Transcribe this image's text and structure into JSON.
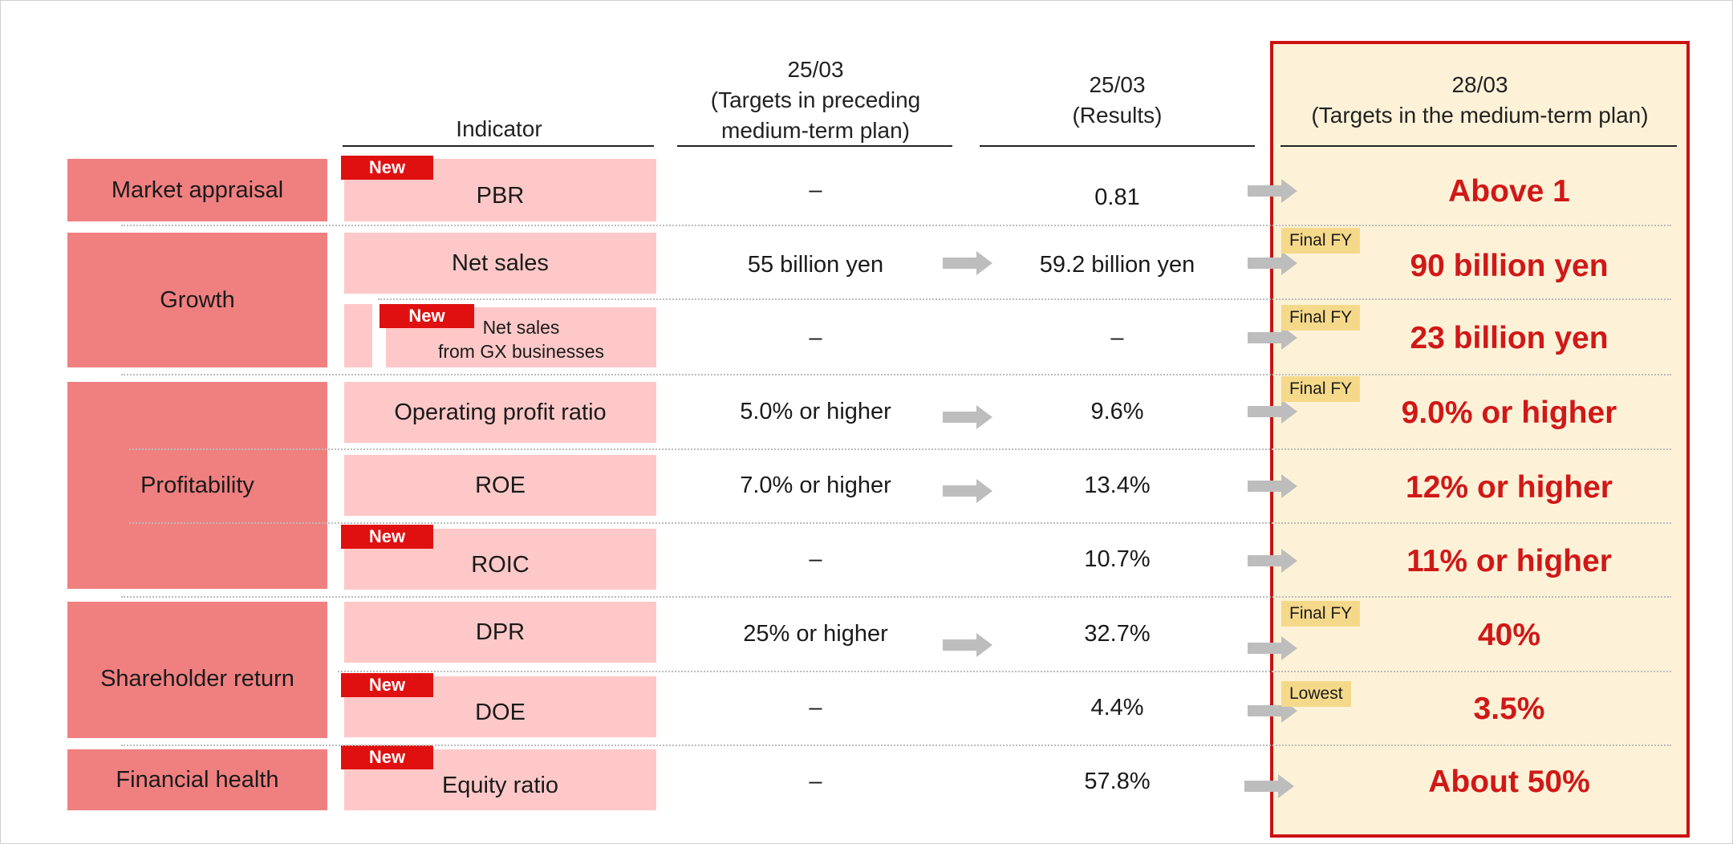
{
  "headers": {
    "indicator": "Indicator",
    "prev_target": [
      "25/03",
      "(Targets in preceding",
      "medium-term plan)"
    ],
    "results": [
      "25/03",
      "(Results)"
    ],
    "new_target": [
      "28/03",
      "(Targets in the medium-term plan)"
    ]
  },
  "categories": {
    "market": "Market appraisal",
    "growth": "Growth",
    "profitability": "Profitability",
    "shareholder": "Shareholder return",
    "financial": "Financial health"
  },
  "new_label": "New",
  "rows": [
    {
      "indicator": "PBR",
      "prev": "–",
      "result": "0.81",
      "target": "Above 1",
      "badge": ""
    },
    {
      "indicator": "Net sales",
      "prev": "55 billion yen",
      "result": "59.2 billion yen",
      "target": "90 billion yen",
      "badge": "Final FY"
    },
    {
      "indicator_lines": [
        "Net sales",
        "from GX businesses"
      ],
      "prev": "–",
      "result": "–",
      "target": "23 billion yen",
      "badge": "Final FY"
    },
    {
      "indicator": "Operating profit ratio",
      "prev": "5.0% or higher",
      "result": "9.6%",
      "target": "9.0% or higher",
      "badge": "Final FY"
    },
    {
      "indicator": "ROE",
      "prev": "7.0% or higher",
      "result": "13.4%",
      "target": "12% or higher",
      "badge": ""
    },
    {
      "indicator": "ROIC",
      "prev": "–",
      "result": "10.7%",
      "target": "11% or higher",
      "badge": ""
    },
    {
      "indicator": "DPR",
      "prev": "25% or higher",
      "result": "32.7%",
      "target": "40%",
      "badge": "Final FY"
    },
    {
      "indicator": "DOE",
      "prev": "–",
      "result": "4.4%",
      "target": "3.5%",
      "badge": "Lowest"
    },
    {
      "indicator": "Equity ratio",
      "prev": "–",
      "result": "57.8%",
      "target": "About 50%",
      "badge": ""
    }
  ],
  "colors": {
    "category_bg": "#f08080",
    "indicator_bg": "#ffc8c8",
    "target_panel_bg": "#fdf2d7",
    "target_panel_border": "#cc1111",
    "target_text": "#d01818",
    "new_badge": "#e01010",
    "fy_badge": "#f5d98a",
    "arrow": "#bdbdbd"
  }
}
